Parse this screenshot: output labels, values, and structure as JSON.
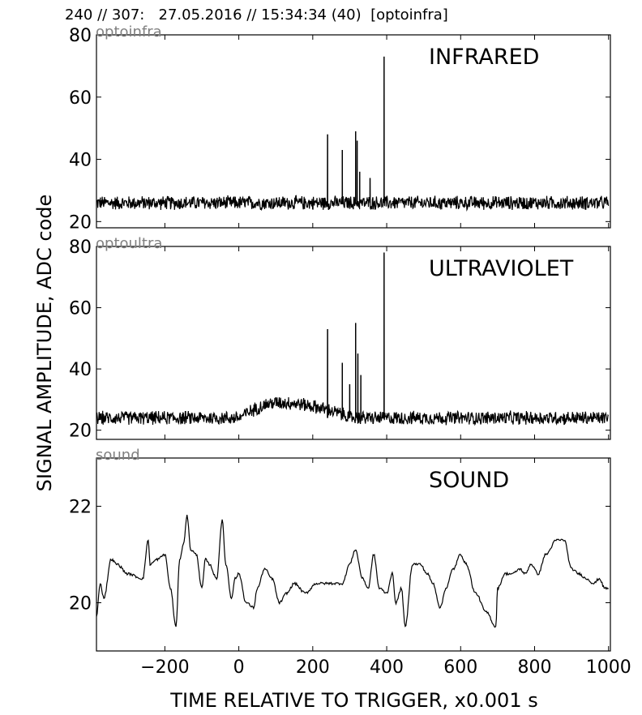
{
  "header": {
    "title": "240 // 307:   27.05.2016 // 15:34:34 (40)  [optoinfra]"
  },
  "chart_data": {
    "type": "line",
    "xlabel": "TIME RELATIVE TO TRIGGER,   x0.001 s",
    "ylabel": "SIGNAL AMPLITUDE,  ADC code",
    "xlim": [
      -385,
      1005
    ],
    "xticks": [
      -200,
      0,
      200,
      400,
      600,
      800,
      1000
    ],
    "xtick_labels": [
      "−200",
      "0",
      "200",
      "400",
      "600",
      "800",
      "1000"
    ],
    "grid": false,
    "panels": [
      {
        "channel": "optoinfra",
        "label": "INFRARED",
        "ylim": [
          18,
          80
        ],
        "yticks": [
          20,
          40,
          60,
          80
        ],
        "baseline": 26,
        "noise_amplitude": 2.5,
        "spikes": [
          {
            "x": 240,
            "y": 48
          },
          {
            "x": 280,
            "y": 43
          },
          {
            "x": 316,
            "y": 49
          },
          {
            "x": 320,
            "y": 46
          },
          {
            "x": 327,
            "y": 36
          },
          {
            "x": 355,
            "y": 34
          },
          {
            "x": 393,
            "y": 73
          }
        ]
      },
      {
        "channel": "optoultra",
        "label": "ULTRAVIOLET",
        "ylim": [
          17,
          80
        ],
        "yticks": [
          20,
          40,
          60,
          80
        ],
        "baseline": 24,
        "noise_amplitude": 2.5,
        "bump": {
          "x": [
            0,
            310
          ],
          "peak_x": 110,
          "peak_y": 29
        },
        "spikes": [
          {
            "x": 240,
            "y": 53
          },
          {
            "x": 280,
            "y": 42
          },
          {
            "x": 300,
            "y": 35
          },
          {
            "x": 316,
            "y": 55
          },
          {
            "x": 322,
            "y": 45
          },
          {
            "x": 330,
            "y": 38
          },
          {
            "x": 393,
            "y": 78
          }
        ]
      },
      {
        "channel": "sound",
        "label": "SOUND",
        "ylim": [
          19,
          23
        ],
        "yticks": [
          20,
          22
        ],
        "x": [
          -385,
          -375,
          -365,
          -345,
          -330,
          -300,
          -260,
          -245,
          -240,
          -220,
          -200,
          -185,
          -170,
          -160,
          -150,
          -140,
          -130,
          -115,
          -100,
          -90,
          -80,
          -60,
          -45,
          -35,
          -20,
          -10,
          0,
          20,
          40,
          50,
          70,
          90,
          110,
          130,
          150,
          180,
          210,
          230,
          250,
          280,
          300,
          315,
          335,
          350,
          365,
          380,
          400,
          415,
          425,
          440,
          450,
          470,
          490,
          510,
          525,
          545,
          560,
          580,
          600,
          615,
          640,
          670,
          695,
          700,
          720,
          740,
          760,
          775,
          790,
          810,
          830,
          860,
          880,
          900,
          920,
          940,
          960,
          975,
          990,
          1000
        ],
        "y": [
          19.7,
          20.4,
          20.1,
          20.9,
          20.8,
          20.6,
          20.5,
          21.3,
          20.8,
          20.9,
          21.0,
          20.3,
          19.5,
          20.9,
          21.2,
          21.8,
          21.1,
          21.0,
          20.3,
          20.9,
          20.8,
          20.5,
          21.7,
          20.8,
          20.1,
          20.5,
          20.6,
          20.0,
          19.9,
          20.3,
          20.7,
          20.5,
          20.0,
          20.2,
          20.4,
          20.2,
          20.4,
          20.4,
          20.4,
          20.4,
          20.8,
          21.1,
          20.5,
          20.3,
          21.0,
          20.3,
          20.2,
          20.6,
          20.0,
          20.3,
          19.5,
          20.8,
          20.8,
          20.6,
          20.4,
          19.9,
          20.3,
          20.7,
          21.0,
          20.8,
          20.2,
          19.8,
          19.5,
          20.3,
          20.6,
          20.6,
          20.7,
          20.6,
          20.8,
          20.6,
          21.0,
          21.3,
          21.3,
          20.7,
          20.6,
          20.5,
          20.4,
          20.5,
          20.3,
          20.3
        ]
      }
    ]
  }
}
